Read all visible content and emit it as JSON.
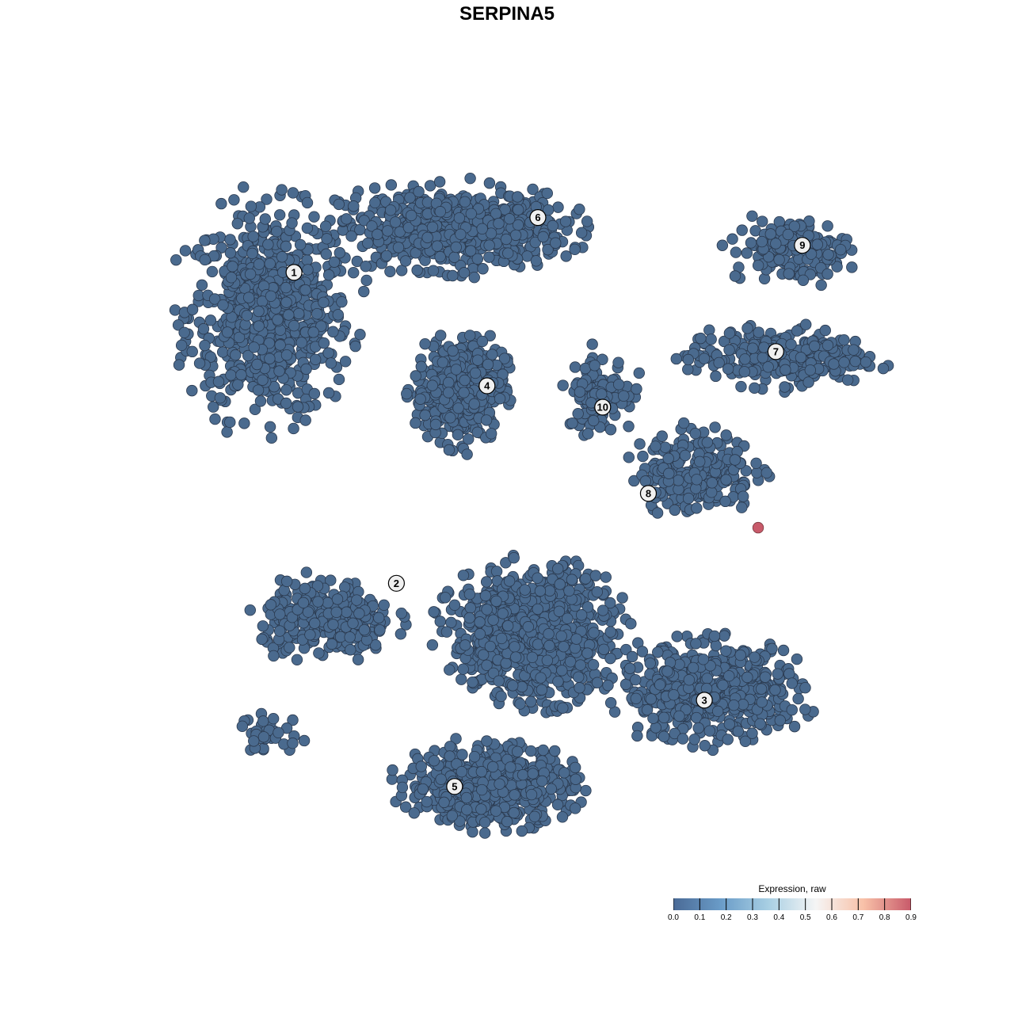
{
  "chart_data": {
    "type": "scatter",
    "title": "SERPINA5",
    "legend": {
      "title": "Expression, raw",
      "ticks": [
        "0.0",
        "0.1",
        "0.2",
        "0.3",
        "0.4",
        "0.5",
        "0.6",
        "0.7",
        "0.8",
        "0.9"
      ],
      "range": [
        0,
        0.9
      ],
      "colors": [
        "#4a6a96",
        "#6a9cc8",
        "#a8cfe3",
        "#f5f5f5",
        "#f8c1a8",
        "#c85a6a"
      ],
      "placement": "bottom-right"
    },
    "axes_visible": false,
    "point_color_default": "#4a6a8e",
    "point_stroke": "#2b3a4f",
    "clusters": [
      {
        "label": "1",
        "label_pos": [
          18.4,
          82.9
        ],
        "center": [
          15,
          77
        ],
        "spread": [
          10,
          13
        ],
        "n": 700
      },
      {
        "label": "6",
        "label_pos": [
          51.5,
          90.6
        ],
        "center": [
          40,
          89
        ],
        "spread": [
          14,
          5
        ],
        "n": 650
      },
      {
        "label": "4",
        "label_pos": [
          44.6,
          67.0
        ],
        "center": [
          41,
          66.5
        ],
        "spread": [
          5.5,
          6.5
        ],
        "n": 420
      },
      {
        "label": "10",
        "label_pos": [
          60.3,
          64.0
        ],
        "center": [
          60,
          66
        ],
        "spread": [
          4,
          5
        ],
        "n": 120
      },
      {
        "label": "9",
        "label_pos": [
          87.4,
          86.7
        ],
        "center": [
          86,
          86
        ],
        "spread": [
          7,
          4
        ],
        "n": 160
      },
      {
        "label": "7",
        "label_pos": [
          83.8,
          71.8
        ],
        "center": [
          84,
          71
        ],
        "spread": [
          11,
          3.5
        ],
        "n": 300
      },
      {
        "label": "8",
        "label_pos": [
          66.5,
          51.9
        ],
        "center": [
          73,
          55
        ],
        "spread": [
          7,
          5
        ],
        "n": 260
      },
      {
        "label": "2",
        "label_pos": [
          32.3,
          39.3
        ],
        "center": [
          23,
          34
        ],
        "spread": [
          8,
          5
        ],
        "n": 320
      },
      {
        "label": "",
        "label_pos": null,
        "center": [
          51,
          32
        ],
        "spread": [
          10,
          8
        ],
        "n": 900
      },
      {
        "label": "5",
        "label_pos": [
          40.2,
          10.8
        ],
        "center": [
          45,
          11
        ],
        "spread": [
          10,
          5
        ],
        "n": 600
      },
      {
        "label": "3",
        "label_pos": [
          74.1,
          22.9
        ],
        "center": [
          75,
          24
        ],
        "spread": [
          11,
          6
        ],
        "n": 550
      },
      {
        "label": "",
        "label_pos": null,
        "center": [
          15,
          18
        ],
        "spread": [
          4,
          2.5
        ],
        "n": 40
      }
    ],
    "highlighted_points": [
      {
        "x": 81.4,
        "y": 47.1,
        "value": 0.85
      }
    ]
  }
}
